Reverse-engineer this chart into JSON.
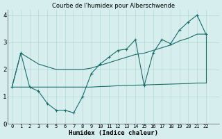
{
  "title": "Courbe de l'humidex pour Alberschwende",
  "xlabel": "Humidex (Indice chaleur)",
  "xlim": [
    -0.5,
    23.5
  ],
  "ylim": [
    0,
    4.2
  ],
  "yticks": [
    0,
    1,
    2,
    3,
    4
  ],
  "background_color": "#d6efee",
  "grid_color": "#b8dbd9",
  "line_color": "#1a6b6a",
  "jagged_x": [
    0,
    1,
    2,
    3,
    4,
    5,
    6,
    7,
    8,
    9,
    10,
    11,
    12,
    13,
    14,
    15,
    16,
    17,
    18,
    19,
    20,
    21,
    22
  ],
  "jagged_y": [
    1.35,
    2.6,
    1.35,
    1.2,
    0.75,
    0.5,
    0.5,
    0.4,
    1.0,
    1.85,
    2.2,
    2.45,
    2.7,
    2.75,
    3.1,
    1.4,
    2.6,
    3.1,
    2.95,
    3.45,
    3.75,
    4.0,
    3.3
  ],
  "flat_x": [
    0,
    1,
    2,
    3,
    4,
    5,
    6,
    7,
    8,
    9,
    10,
    11,
    12,
    13,
    14,
    15,
    16,
    17,
    18,
    19,
    20,
    21,
    22
  ],
  "flat_y": [
    1.35,
    1.35,
    1.35,
    1.35,
    1.35,
    1.35,
    1.35,
    1.35,
    1.35,
    1.35,
    1.37,
    1.38,
    1.4,
    1.41,
    1.42,
    1.43,
    1.44,
    1.45,
    1.46,
    1.47,
    1.48,
    1.5,
    1.5
  ],
  "diag_x": [
    0,
    1,
    2,
    3,
    4,
    5,
    6,
    7,
    8,
    9,
    10,
    11,
    12,
    13,
    14,
    15,
    16,
    17,
    18,
    19,
    20,
    21,
    22
  ],
  "diag_y": [
    1.35,
    2.6,
    2.4,
    2.2,
    2.1,
    2.0,
    2.0,
    2.0,
    2.0,
    2.05,
    2.15,
    2.25,
    2.35,
    2.45,
    2.55,
    2.6,
    2.7,
    2.8,
    2.9,
    3.05,
    3.15,
    3.3,
    3.3
  ]
}
